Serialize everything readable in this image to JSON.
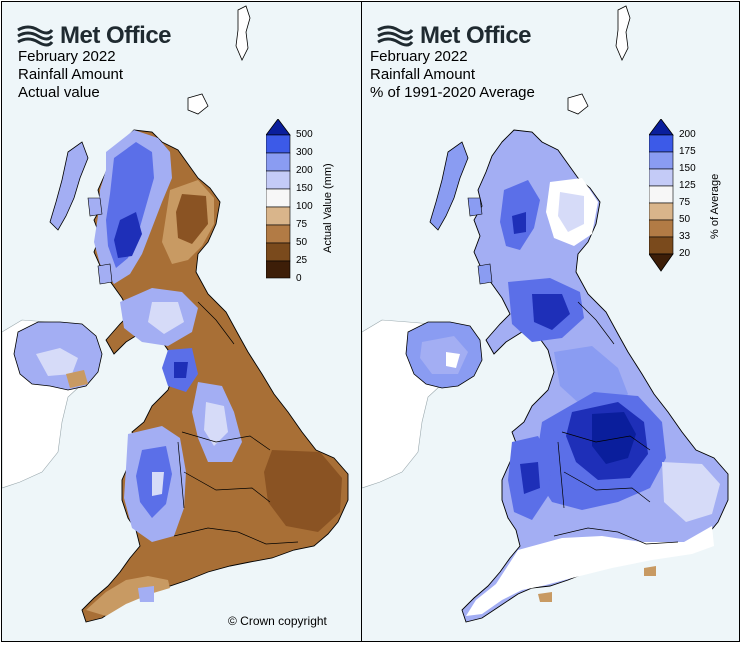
{
  "left_panel": {
    "brand": "Met Office",
    "title_lines": [
      "February 2022",
      "Rainfall Amount",
      "Actual value"
    ],
    "legend": {
      "title": "Actual Value (mm)",
      "ticks": [
        "500",
        "300",
        "200",
        "150",
        "100",
        "75",
        "50",
        "25",
        "0"
      ],
      "colors": [
        "#0a1e9c",
        "#3c5ae8",
        "#8a9cf2",
        "#c4cbf7",
        "#f7f7f7",
        "#d9b58b",
        "#b27b45",
        "#7a4a1c",
        "#3d1e08"
      ]
    },
    "copyright": "© Crown copyright"
  },
  "right_panel": {
    "brand": "Met Office",
    "title_lines": [
      "February 2022",
      "Rainfall Amount",
      "% of 1991-2020 Average"
    ],
    "legend": {
      "title": "% of Average",
      "ticks": [
        "200",
        "175",
        "150",
        "125",
        "75",
        "50",
        "33",
        "20"
      ],
      "colors": [
        "#0a1e9c",
        "#3c5ae8",
        "#8a9cf2",
        "#c4cbf7",
        "#f7f7f7",
        "#d9b58b",
        "#b27b45",
        "#7a4a1c",
        "#3d1e08"
      ]
    }
  },
  "map_colors": {
    "sea": "#eef6f9",
    "other_land": "#ffffff",
    "wet_dark": "#1e2fb8",
    "wet_mid": "#5b6fe8",
    "wet_light": "#a3aef3",
    "pale": "#d6dbf8",
    "dry_light": "#c89a63",
    "dry_mid": "#a86f36",
    "dry_dark": "#8a5323"
  }
}
